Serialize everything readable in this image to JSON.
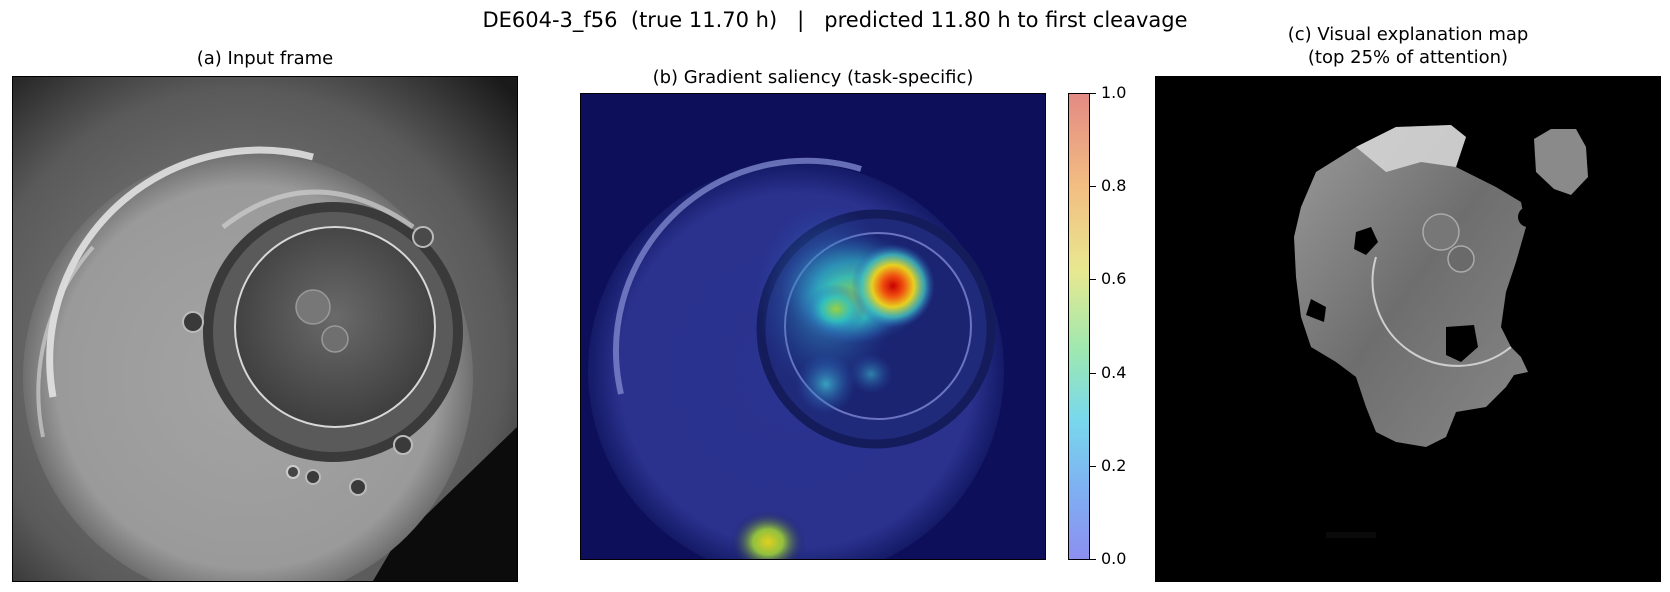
{
  "figure": {
    "suptitle": "DE604-3_f56  (true 11.70 h)   |   predicted 11.80 h to first cleavage"
  },
  "panels": {
    "a": {
      "title": "(a) Input frame"
    },
    "b": {
      "title": "(b) Gradient saliency (task-specific)"
    },
    "c": {
      "title": "(c) Visual explanation map\n(top 25% of attention)"
    }
  },
  "colorbar": {
    "ticks": [
      "1.0",
      "0.8",
      "0.6",
      "0.4",
      "0.2",
      "0.0"
    ],
    "colormap": "jet",
    "range": [
      0.0,
      1.0
    ]
  },
  "colors": {
    "background": "#ffffff",
    "saliency_low": "#1a1a6e",
    "saliency_high": "#b30000"
  }
}
